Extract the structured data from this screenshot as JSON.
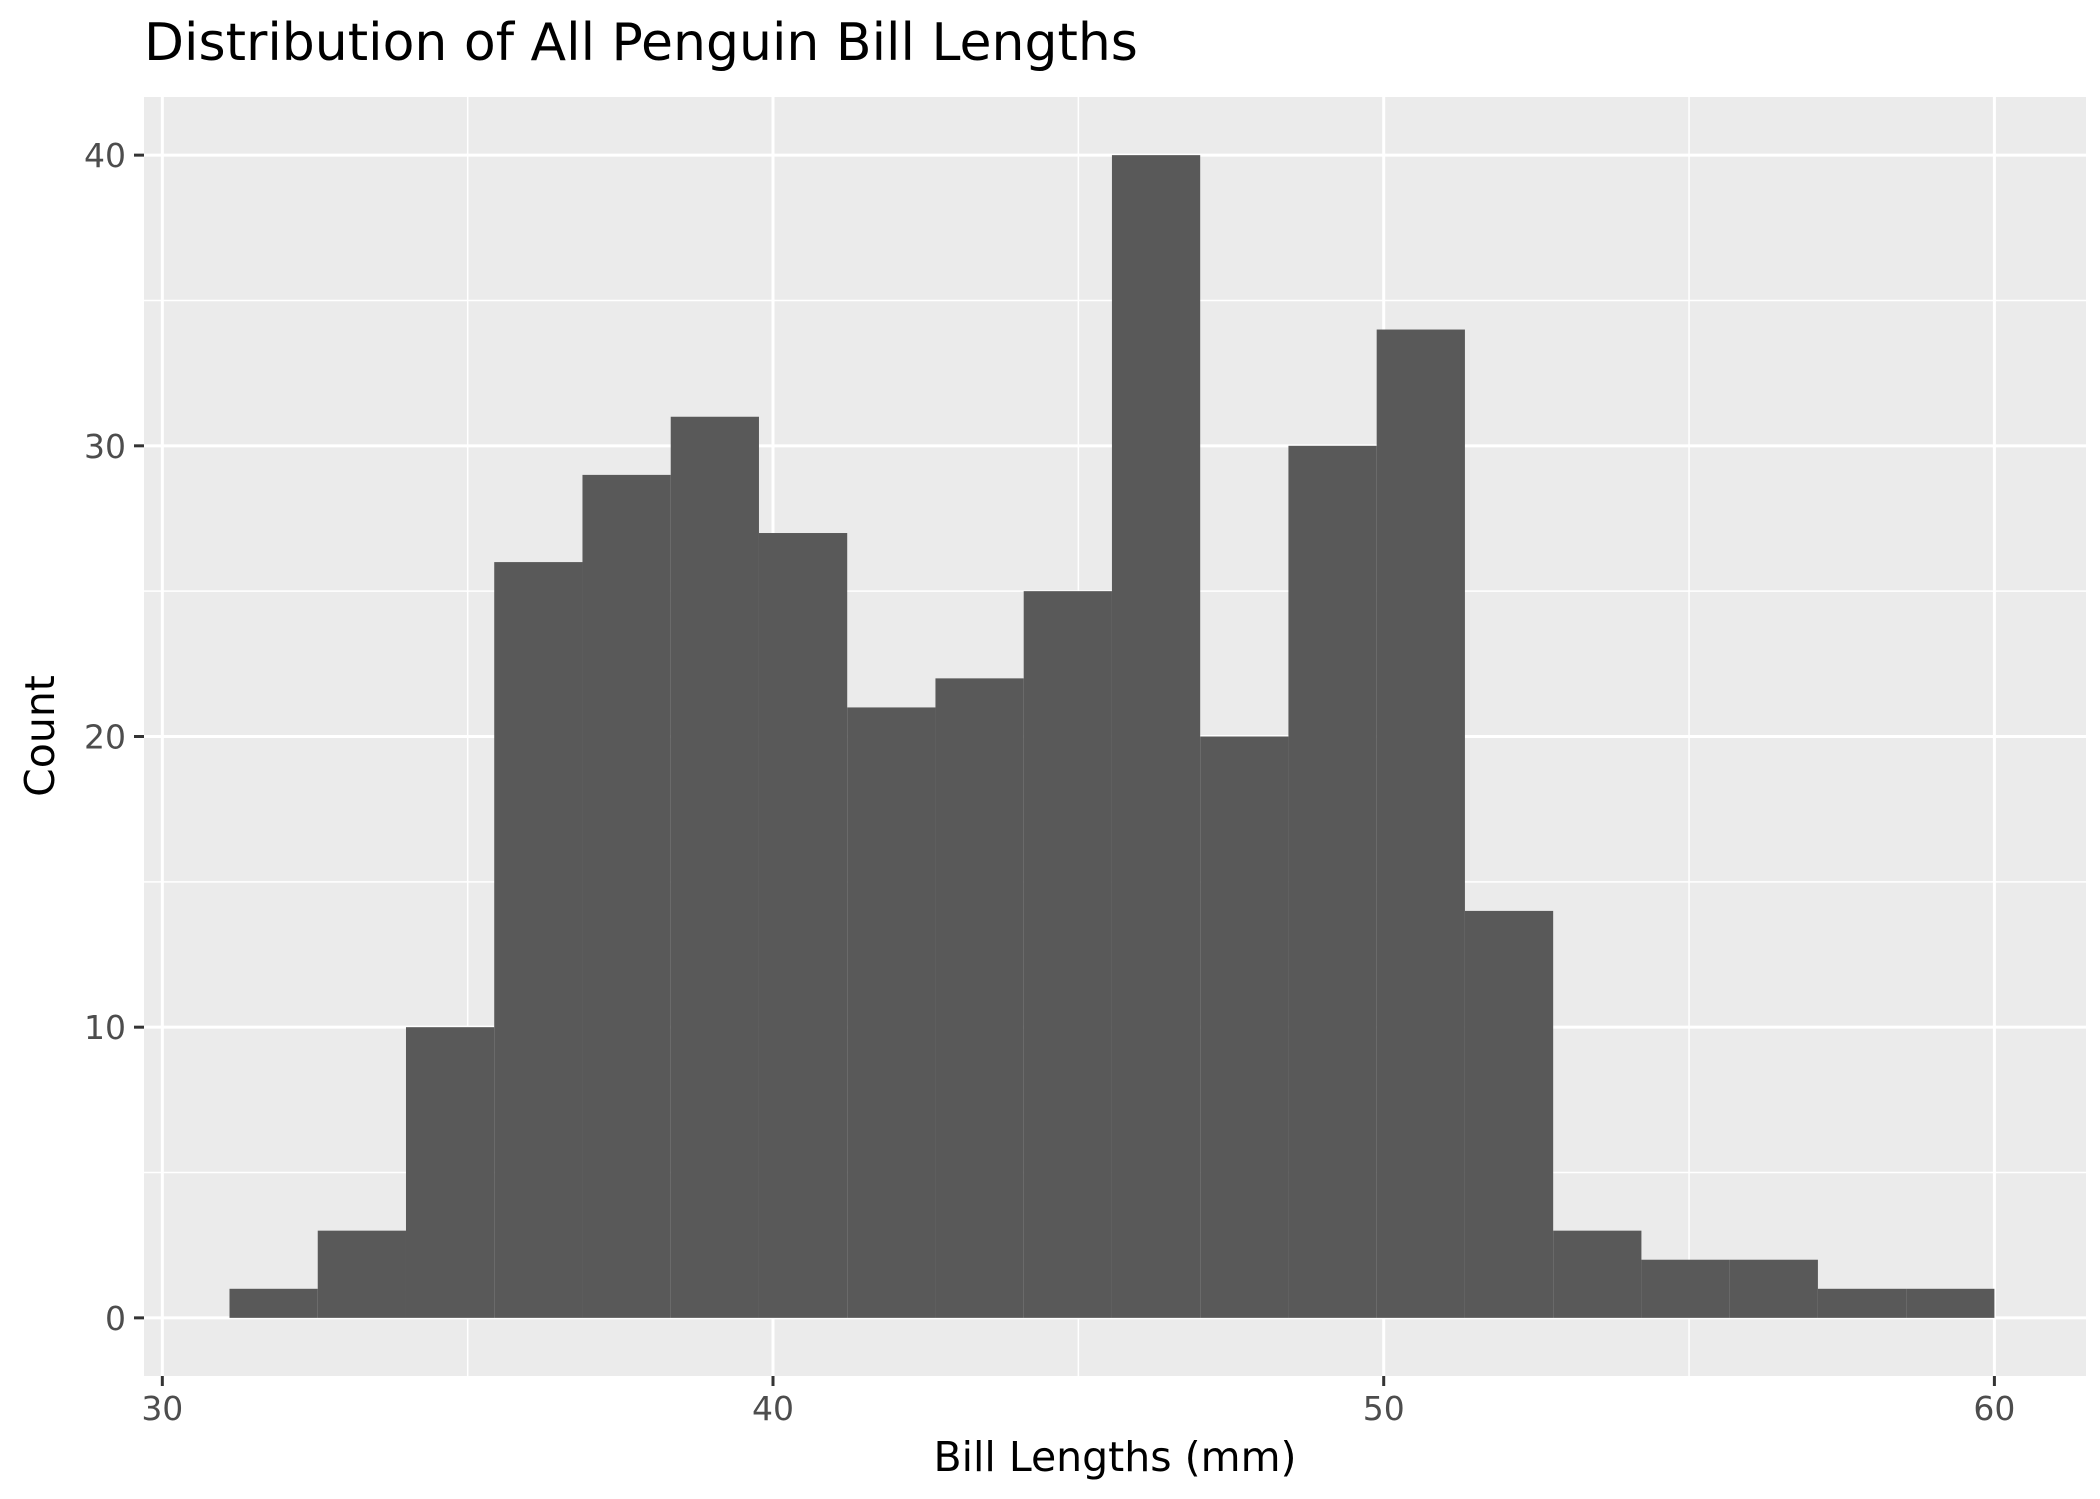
{
  "chart_data": {
    "type": "bar",
    "title": "Distribution of All Penguin Bill Lengths",
    "xlabel": "Bill Lengths (mm)",
    "ylabel": "Count",
    "xlim": [
      29.7,
      61.5
    ],
    "ylim": [
      -2,
      42
    ],
    "x_ticks": [
      30,
      40,
      50,
      60
    ],
    "y_ticks": [
      0,
      10,
      20,
      30,
      40
    ],
    "grid": true,
    "legend": "none",
    "bin_width": 1.445,
    "bins": [
      {
        "x0": 31.1,
        "x1": 32.545,
        "count": 1
      },
      {
        "x0": 32.545,
        "x1": 33.99,
        "count": 3
      },
      {
        "x0": 33.99,
        "x1": 35.435,
        "count": 10
      },
      {
        "x0": 35.435,
        "x1": 36.88,
        "count": 26
      },
      {
        "x0": 36.88,
        "x1": 38.325,
        "count": 29
      },
      {
        "x0": 38.325,
        "x1": 39.77,
        "count": 31
      },
      {
        "x0": 39.77,
        "x1": 41.215,
        "count": 27
      },
      {
        "x0": 41.215,
        "x1": 42.66,
        "count": 21
      },
      {
        "x0": 42.66,
        "x1": 44.105,
        "count": 22
      },
      {
        "x0": 44.105,
        "x1": 45.55,
        "count": 25
      },
      {
        "x0": 45.55,
        "x1": 46.995,
        "count": 40
      },
      {
        "x0": 46.995,
        "x1": 48.44,
        "count": 20
      },
      {
        "x0": 48.44,
        "x1": 49.885,
        "count": 30
      },
      {
        "x0": 49.885,
        "x1": 51.33,
        "count": 34
      },
      {
        "x0": 51.33,
        "x1": 52.775,
        "count": 14
      },
      {
        "x0": 52.775,
        "x1": 54.22,
        "count": 3
      },
      {
        "x0": 54.22,
        "x1": 55.665,
        "count": 2
      },
      {
        "x0": 55.665,
        "x1": 57.11,
        "count": 2
      },
      {
        "x0": 57.11,
        "x1": 58.555,
        "count": 1
      },
      {
        "x0": 58.555,
        "x1": 60.0,
        "count": 1
      }
    ],
    "colors": {
      "bar": "#595959",
      "panel": "#ebebeb",
      "grid": "#ffffff",
      "tick": "#333333"
    }
  }
}
